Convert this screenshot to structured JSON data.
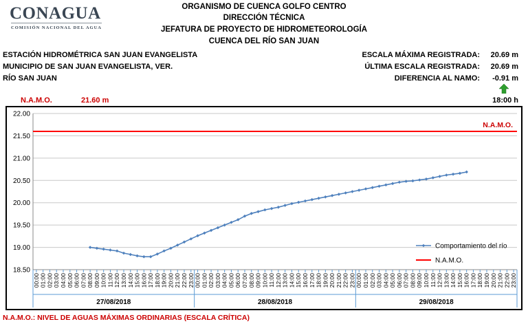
{
  "logo": {
    "name": "CONAGUA",
    "tagline": "COMISIÓN NACIONAL DEL AGUA"
  },
  "header": {
    "line1": "ORGANISMO DE CUENCA GOLFO CENTRO",
    "line2": "DIRECCIÓN TÉCNICA",
    "line3": "JEFATURA DE PROYECTO DE HIDROMETEOROLOGÍA",
    "line4": "CUENCA DEL RÍO SAN JUAN"
  },
  "station": {
    "name": "ESTACIÓN HIDROMÉTRICA SAN JUAN EVANGELISTA",
    "municipality": "MUNICIPIO DE SAN JUAN EVANGELISTA, VER.",
    "river": "RÍO SAN JUAN"
  },
  "stats": {
    "max_label": "ESCALA MÁXIMA REGISTRADA:",
    "max_value": "20.69 m",
    "last_label": "ÚLTIMA ESCALA REGISTRADA:",
    "last_value": "20.69 m",
    "diff_label": "DIFERENCIA AL NAMO:",
    "diff_value": "-0.91 m",
    "time": "18:00 h",
    "trend_icon": "arrow-up-icon",
    "trend_color": "#2e9e2e"
  },
  "namo": {
    "label": "N.A.M.O.",
    "value": "21.60 m"
  },
  "footer": {
    "note": "N.A.M.O.: NIVEL DE AGUAS MÁXIMAS ORDINARIAS (ESCALA CRÍTICA)"
  },
  "chart_data": {
    "type": "line",
    "ylim": [
      18.5,
      22.0
    ],
    "yticks": [
      "18.50",
      "19.00",
      "19.50",
      "20.00",
      "20.50",
      "21.00",
      "21.50",
      "22.00"
    ],
    "x_hours": [
      "00:00",
      "01:00",
      "02:00",
      "03:00",
      "04:00",
      "05:00",
      "06:00",
      "07:00",
      "08:00",
      "09:00",
      "10:00",
      "11:00",
      "12:00",
      "13:00",
      "14:00",
      "15:00",
      "16:00",
      "17:00",
      "18:00",
      "19:00",
      "20:00",
      "21:00",
      "22:00",
      "23:00"
    ],
    "days": [
      "27/08/2018",
      "28/08/2018",
      "29/08/2018"
    ],
    "grid": true,
    "legend_position": "bottom-right",
    "series": [
      {
        "name": "Comportamiento del río",
        "color": "#4f81bd",
        "start": {
          "day": 0,
          "hour": 8
        },
        "values": [
          19.0,
          18.98,
          18.96,
          18.94,
          18.92,
          18.87,
          18.84,
          18.81,
          18.79,
          18.79,
          18.85,
          18.92,
          18.98,
          19.05,
          19.12,
          19.19,
          19.26,
          19.32,
          19.38,
          19.44,
          19.5,
          19.56,
          19.62,
          19.7,
          19.76,
          19.8,
          19.84,
          19.87,
          19.9,
          19.94,
          19.98,
          20.01,
          20.04,
          20.07,
          20.1,
          20.13,
          20.16,
          20.19,
          20.22,
          20.25,
          20.28,
          20.31,
          20.34,
          20.37,
          20.4,
          20.43,
          20.46,
          20.48,
          20.49,
          20.51,
          20.53,
          20.56,
          20.59,
          20.62,
          20.64,
          20.66,
          20.69
        ]
      },
      {
        "name": "N.A.M.O.",
        "color": "#ff0000",
        "constant": 21.6
      }
    ]
  }
}
